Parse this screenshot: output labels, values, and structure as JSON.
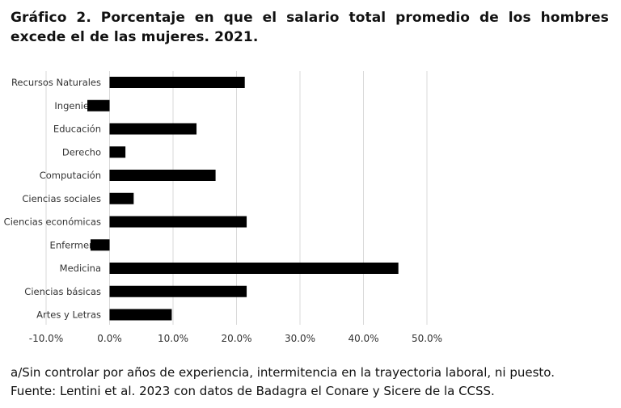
{
  "title": "Gráfico 2. Porcentaje en que el salario total promedio de los hombres excede el de las mujeres. 2021.",
  "notes": [
    "a/Sin controlar por años de experiencia, intermitencia en la trayectoria laboral, ni puesto.",
    "Fuente: Lentini et al. 2023 con datos de Badagra el Conare y Sicere de la CCSS."
  ],
  "chart_data": {
    "type": "bar",
    "orientation": "horizontal",
    "categories": [
      "Recursos Naturales",
      "Ingeniería",
      "Educación",
      "Derecho",
      "Computación",
      "Ciencias sociales",
      "Ciencias económicas",
      "Enfermería",
      "Medicina",
      "Ciencias básicas",
      "Artes y Letras"
    ],
    "values": [
      21.3,
      -3.5,
      13.7,
      2.5,
      16.7,
      3.8,
      21.6,
      -3.0,
      45.5,
      21.6,
      9.8
    ],
    "xlim": [
      -10,
      50
    ],
    "ticks": [
      "-10.0%",
      "0.0%",
      "10.0%",
      "20.0%",
      "30.0%",
      "40.0%",
      "50.0%"
    ],
    "tick_values": [
      -10,
      0,
      10,
      20,
      30,
      40,
      50
    ],
    "grid": "vertical",
    "bar_color": "#000000",
    "grid_color": "#d9d9d9",
    "legend": "none"
  }
}
